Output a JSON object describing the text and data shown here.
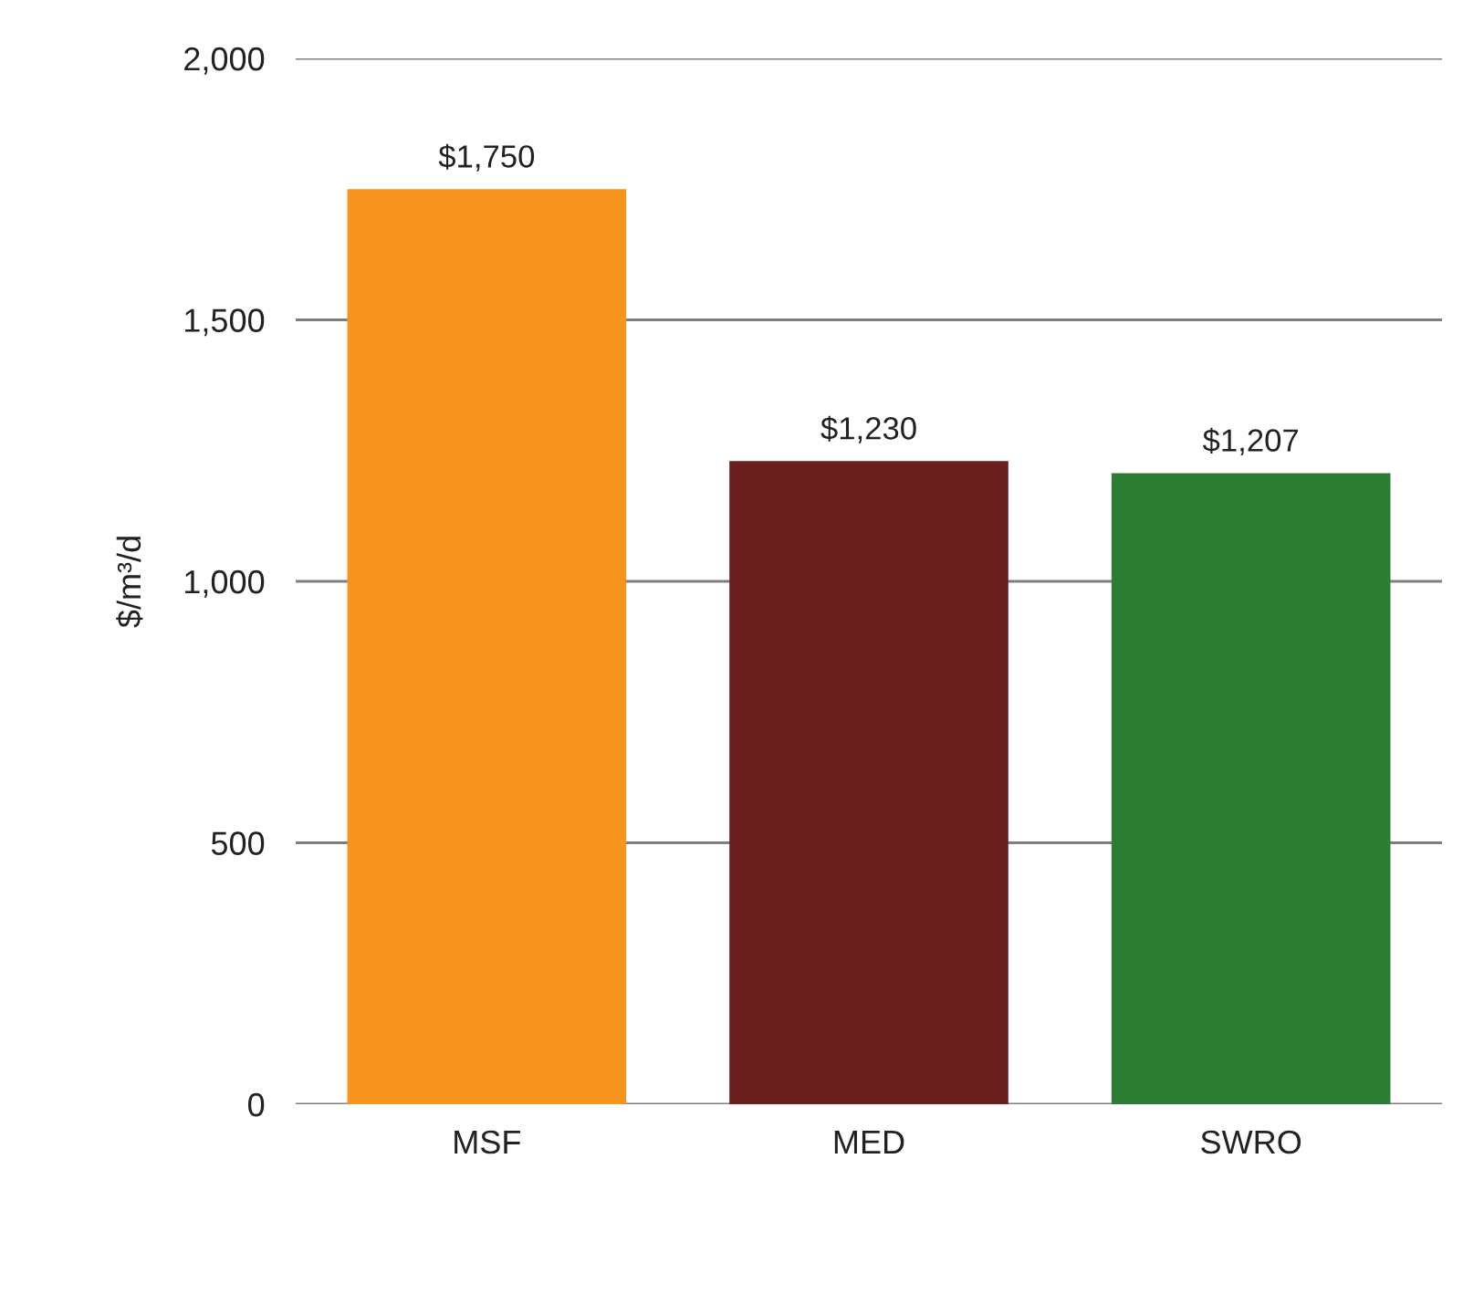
{
  "chart_data": {
    "type": "bar",
    "ylabel": "$/m³/d",
    "categories": [
      "MSF",
      "MED",
      "SWRO"
    ],
    "values": [
      1750,
      1230,
      1207
    ],
    "colors": [
      "#f7941d",
      "#6b1e1e",
      "#2e7d34"
    ],
    "value_labels": [
      "$1,750",
      "$1,230",
      "$1,207"
    ],
    "ylim": [
      0,
      2000
    ],
    "yticks": [
      {
        "value": 0,
        "label": "0"
      },
      {
        "value": 500,
        "label": "500"
      },
      {
        "value": 1000,
        "label": "1,000"
      },
      {
        "value": 1500,
        "label": "1,500"
      },
      {
        "value": 2000,
        "label": "2,000"
      }
    ],
    "grid": "y"
  }
}
